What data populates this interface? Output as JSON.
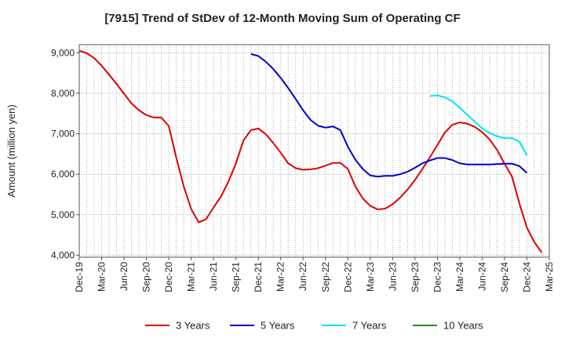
{
  "chart_data": {
    "type": "line",
    "title": "[7915]  Trend of StDev of 12-Month Moving Sum of Operating CF",
    "xlabel": "",
    "ylabel": "Amount (million yen)",
    "ylim": [
      3950,
      9200
    ],
    "yticks": [
      4000,
      5000,
      6000,
      7000,
      8000,
      9000
    ],
    "ytick_labels": [
      "4,000",
      "5,000",
      "6,000",
      "7,000",
      "8,000",
      "9,000"
    ],
    "xtick_labels": [
      "Dec-19",
      "Mar-20",
      "Jun-20",
      "Sep-20",
      "Dec-20",
      "Mar-21",
      "Jun-21",
      "Sep-21",
      "Dec-21",
      "Mar-22",
      "Jun-22",
      "Sep-22",
      "Dec-22",
      "Mar-23",
      "Jun-23",
      "Sep-23",
      "Dec-23",
      "Mar-24",
      "Jun-24",
      "Sep-24",
      "Dec-24",
      "Mar-25"
    ],
    "x_start": "Dec-19",
    "x_count": 64,
    "grid": true,
    "legend_position": "bottom",
    "series": [
      {
        "name": "3 Years",
        "color": "#dd0000",
        "start": "Dec-19",
        "values": [
          9050,
          8990,
          8870,
          8680,
          8460,
          8230,
          7990,
          7750,
          7580,
          7460,
          7400,
          7400,
          7190,
          6410,
          5700,
          5140,
          4810,
          4890,
          5180,
          5450,
          5820,
          6270,
          6830,
          7090,
          7130,
          6990,
          6770,
          6530,
          6270,
          6150,
          6110,
          6120,
          6150,
          6210,
          6280,
          6280,
          6130,
          5700,
          5400,
          5220,
          5130,
          5150,
          5260,
          5420,
          5620,
          5860,
          6130,
          6420,
          6720,
          7030,
          7220,
          7280,
          7250,
          7170,
          7040,
          6860,
          6600,
          6260,
          5940,
          5270,
          4680,
          4320,
          4060
        ]
      },
      {
        "name": "5 Years",
        "color": "#0000cc",
        "start": "Nov-21",
        "values": [
          8970,
          8920,
          8780,
          8600,
          8380,
          8130,
          7860,
          7580,
          7340,
          7200,
          7150,
          7180,
          7090,
          6680,
          6360,
          6130,
          5970,
          5940,
          5960,
          5960,
          6000,
          6060,
          6160,
          6270,
          6340,
          6400,
          6400,
          6350,
          6270,
          6240,
          6240,
          6240,
          6240,
          6250,
          6260,
          6260,
          6200,
          6030
        ]
      },
      {
        "name": "7 Years",
        "color": "#00e5ee",
        "start": "Nov-23",
        "values": [
          7930,
          7950,
          7900,
          7800,
          7640,
          7470,
          7300,
          7130,
          7020,
          6940,
          6890,
          6890,
          6800,
          6460
        ]
      },
      {
        "name": "10 Years",
        "color": "#228b22",
        "start": "Nov-24",
        "values": []
      }
    ]
  }
}
